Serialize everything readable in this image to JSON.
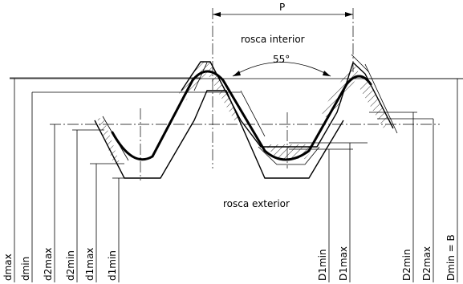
{
  "labels": {
    "pitch": "P",
    "interior": "rosca interior",
    "exterior": "rosca exterior",
    "angle": "55°"
  },
  "left_dims": [
    "dmax",
    "dmin",
    "d2max",
    "d2min",
    "d1max",
    "d1min"
  ],
  "right_dims": [
    "D1min",
    "D1max",
    "D2min",
    "D2max",
    "Dmin = B"
  ]
}
